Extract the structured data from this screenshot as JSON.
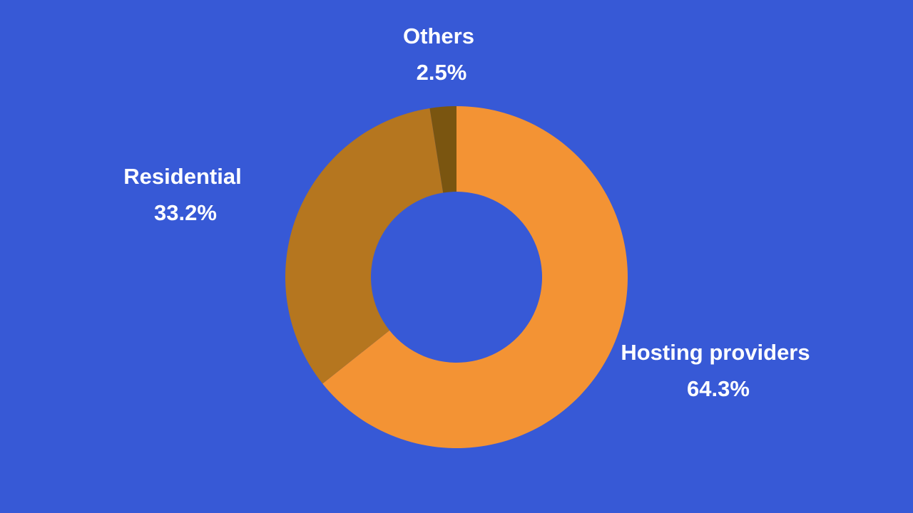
{
  "chart_data": {
    "type": "donut",
    "categories": [
      "Hosting providers",
      "Residential",
      "Others"
    ],
    "values": [
      64.3,
      33.2,
      2.5
    ],
    "value_labels": [
      "64.3%",
      "33.2%",
      "2.5%"
    ],
    "colors": [
      "#f39334",
      "#b5761f",
      "#7a5510"
    ]
  }
}
